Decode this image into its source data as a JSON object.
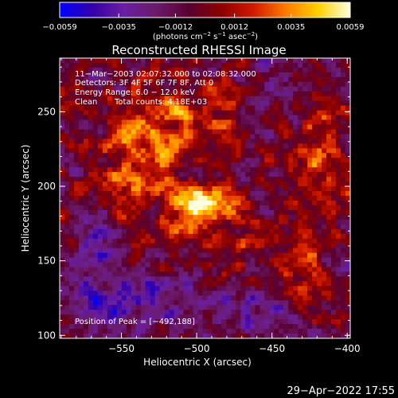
{
  "colorbar": {
    "ticks": [
      {
        "value": -0.0059,
        "label": "−0.0059"
      },
      {
        "value": -0.0035,
        "label": "−0.0035"
      },
      {
        "value": -0.0012,
        "label": "−0.0012"
      },
      {
        "value": 0.0012,
        "label": "0.0012"
      },
      {
        "value": 0.0035,
        "label": "0.0035"
      },
      {
        "value": 0.0059,
        "label": "0.0059"
      }
    ],
    "range": [
      -0.0059,
      0.0059
    ],
    "unit_text": "(photons cm",
    "unit_exp1": "−2",
    "unit_mid": " s",
    "unit_exp2": "−1",
    "unit_end": " asec",
    "unit_exp3": "−2",
    "unit_close": ")",
    "colors": [
      "#0000ff",
      "#3300aa",
      "#6a1fa0",
      "#6b1a6b",
      "#5a0030",
      "#8a0000",
      "#d01a00",
      "#ff7a00",
      "#ffd000",
      "#ffffe0"
    ]
  },
  "chart_data": {
    "type": "heatmap",
    "title": "Reconstructed RHESSI Image",
    "xlabel": "Heliocentric X (arcsec)",
    "ylabel": "Heliocentric Y (arcsec)",
    "xlim": [
      -591,
      -398
    ],
    "ylim": [
      98,
      286
    ],
    "xticks": [
      {
        "value": -550,
        "label": "−550"
      },
      {
        "value": -500,
        "label": "−500"
      },
      {
        "value": -450,
        "label": "−450"
      },
      {
        "value": -400,
        "label": "−400"
      }
    ],
    "yticks": [
      {
        "value": 100,
        "label": "100"
      },
      {
        "value": 150,
        "label": "150"
      },
      {
        "value": 200,
        "label": "200"
      },
      {
        "value": 250,
        "label": "250"
      }
    ],
    "grid": false,
    "peak": {
      "x": -492,
      "y": 188
    },
    "sources": [
      {
        "x": -492,
        "y": 188,
        "amp": 0.0059,
        "sx": 14,
        "sy": 9
      },
      {
        "x": -505,
        "y": 175,
        "amp": 0.0032,
        "sx": 9,
        "sy": 9
      },
      {
        "x": -540,
        "y": 215,
        "amp": 0.003,
        "sx": 22,
        "sy": 28
      },
      {
        "x": -520,
        "y": 245,
        "amp": 0.0024,
        "sx": 18,
        "sy": 14
      },
      {
        "x": -480,
        "y": 250,
        "amp": 0.0022,
        "sx": 14,
        "sy": 12
      },
      {
        "x": -420,
        "y": 220,
        "amp": 0.0026,
        "sx": 14,
        "sy": 35
      },
      {
        "x": -430,
        "y": 140,
        "amp": 0.0022,
        "sx": 12,
        "sy": 18
      },
      {
        "x": -470,
        "y": 160,
        "amp": 0.0014,
        "sx": 15,
        "sy": 15
      },
      {
        "x": -570,
        "y": 165,
        "amp": -0.0016,
        "sx": 18,
        "sy": 25
      },
      {
        "x": -545,
        "y": 120,
        "amp": -0.0022,
        "sx": 30,
        "sy": 16
      },
      {
        "x": -460,
        "y": 115,
        "amp": -0.002,
        "sx": 22,
        "sy": 12
      },
      {
        "x": -440,
        "y": 265,
        "amp": -0.0014,
        "sx": 18,
        "sy": 15
      }
    ]
  },
  "overlay": {
    "time_range": "11−Mar−2003 02:07:32.000 to 02:08:32.000",
    "detectors": "Detectors: 3F 4F 5F 6F 7F 8F, Att 0",
    "energy": "Energy Range: 6.0 − 12.0 keV",
    "clean": "Clean",
    "total_counts": "Total counts: 4.18E+03",
    "peak_label": "Position of Peak = [−492,188]"
  },
  "footer": {
    "date": "29−Apr−2022 17:55"
  }
}
